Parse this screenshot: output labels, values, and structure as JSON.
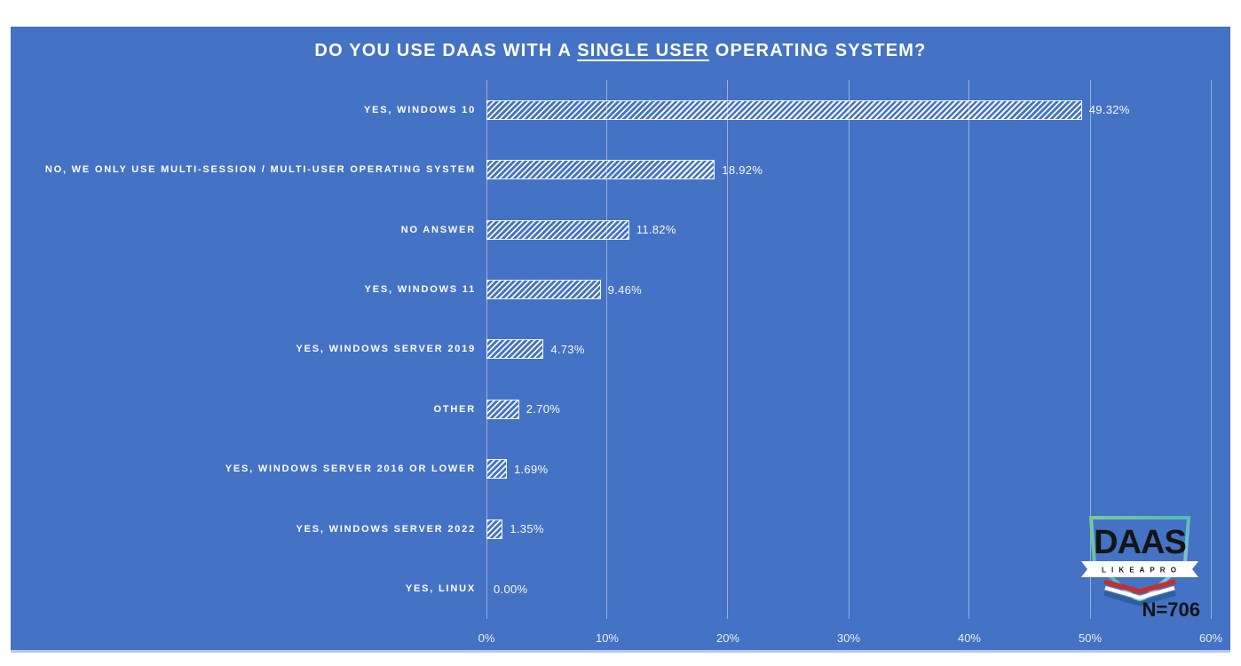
{
  "page": {
    "background": "#ffffff",
    "panel_color": "#4472C4"
  },
  "chart_data": {
    "type": "bar",
    "orientation": "horizontal",
    "title": "DO YOU USE DAAS WITH A SINGLE USER OPERATING SYSTEM?",
    "title_parts": {
      "before": "DO YOU USE DAAS WITH A ",
      "underlined": "SINGLE USER",
      "after": " OPERATING SYSTEM?"
    },
    "categories": [
      "YES, WINDOWS 10",
      "NO, WE ONLY USE MULTI-SESSION / MULTI-USER OPERATING SYSTEM",
      "NO ANSWER",
      "YES, WINDOWS 11",
      "YES, WINDOWS SERVER 2019",
      "OTHER",
      "YES, WINDOWS SERVER 2016 OR LOWER",
      "YES, WINDOWS SERVER 2022",
      "YES, LINUX"
    ],
    "values": [
      49.32,
      18.92,
      11.82,
      9.46,
      4.73,
      2.7,
      1.69,
      1.35,
      0.0
    ],
    "value_labels": [
      "49.32%",
      "18.92%",
      "11.82%",
      "9.46%",
      "4.73%",
      "2.70%",
      "1.69%",
      "1.35%",
      "0.00%"
    ],
    "xlabel": "",
    "ylabel": "",
    "xlim": [
      0,
      60
    ],
    "x_ticks": [
      "0%",
      "10%",
      "20%",
      "30%",
      "40%",
      "50%",
      "60%"
    ],
    "grid": true,
    "legend_position": "none",
    "bar_style": "white diagonal hatch on blue background",
    "colors": {
      "panel_background": "#4472C4",
      "bar_hatch": "#ffffff",
      "gridline": "rgba(255,255,255,0.45)",
      "text": "#ffffff",
      "panel_bottom_edge": "#b7c9ea"
    }
  },
  "logo": {
    "name": "DAAS",
    "tagline": "L I K E   A   P R O",
    "sample_size": "N=706",
    "colors": {
      "shield_gradient_start": "#7CC998",
      "shield_gradient_mid": "#52BBB4",
      "shield_gradient_end": "#A9CBEF",
      "banner": "#ffffff",
      "flag_red": "#C23030",
      "flag_white": "#ffffff",
      "flag_blue": "#2E5F9E",
      "text": "#141414"
    }
  }
}
